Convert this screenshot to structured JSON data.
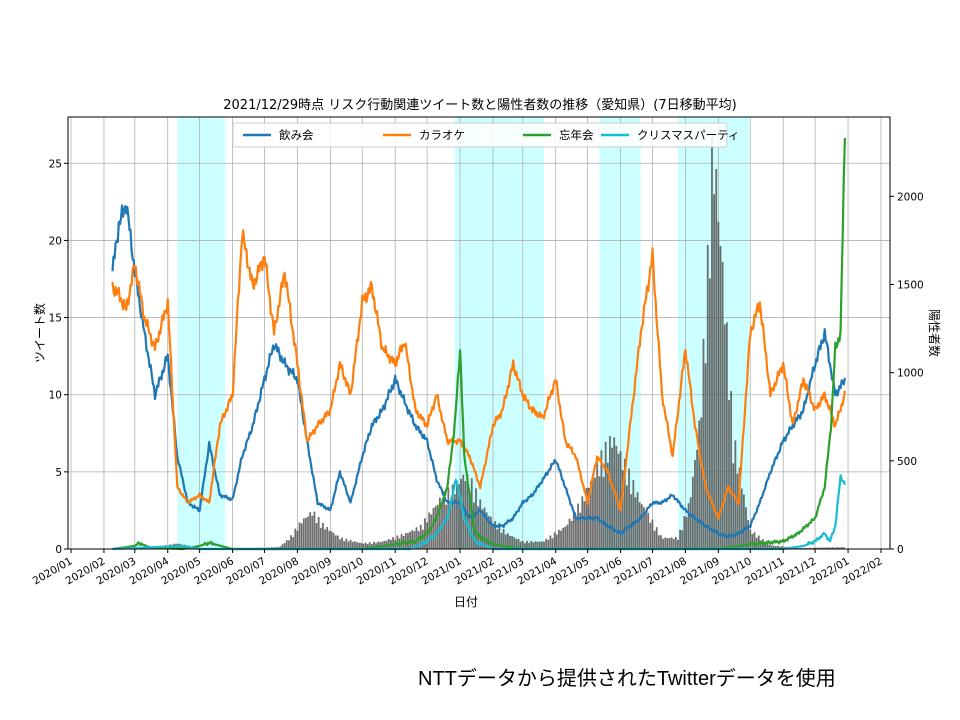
{
  "chart_data": {
    "type": "line",
    "title": "2021/12/29時点 リスク行動関連ツイート数と陽性者数の推移（愛知県）(7日移動平均)",
    "xlabel": "日付",
    "ylabel": "ツイート数",
    "ylabel_right": "陽性者数",
    "x_ticks": [
      "2020/01",
      "2020/02",
      "2020/03",
      "2020/04",
      "2020/05",
      "2020/06",
      "2020/07",
      "2020/08",
      "2020/09",
      "2020/10",
      "2020/11",
      "2020/12",
      "2021/01",
      "2021/02",
      "2021/03",
      "2021/04",
      "2021/05",
      "2021/06",
      "2021/07",
      "2021/08",
      "2021/09",
      "2021/10",
      "2021/11",
      "2021/12",
      "2022/01",
      "2022/02"
    ],
    "ylim": [
      0,
      28
    ],
    "y_ticks": [
      0,
      5,
      10,
      15,
      20,
      25
    ],
    "ylim_right": [
      0,
      2450
    ],
    "y_ticks_right": [
      0,
      500,
      1000,
      1500,
      2000
    ],
    "grid": true,
    "legend": "top-center",
    "shaded_periods": [
      [
        "2020/04/10",
        "2020/05/25"
      ],
      [
        "2020/12/27",
        "2021/03/21"
      ],
      [
        "2021/05/12",
        "2021/06/20"
      ],
      [
        "2021/07/25",
        "2021/09/30"
      ]
    ],
    "series": [
      {
        "name": "飲み会",
        "color": "#1f77b4",
        "x": [
          "2020/02/09",
          "2020/02/15",
          "2020/02/22",
          "2020/03/01",
          "2020/03/10",
          "2020/03/20",
          "2020/04/01",
          "2020/04/10",
          "2020/04/20",
          "2020/05/01",
          "2020/05/10",
          "2020/05/20",
          "2020/06/01",
          "2020/06/10",
          "2020/06/20",
          "2020/07/01",
          "2020/07/10",
          "2020/07/20",
          "2020/08/01",
          "2020/08/10",
          "2020/08/20",
          "2020/09/01",
          "2020/09/10",
          "2020/09/20",
          "2020/10/01",
          "2020/10/10",
          "2020/10/20",
          "2020/11/01",
          "2020/11/10",
          "2020/11/20",
          "2020/12/01",
          "2020/12/10",
          "2020/12/20",
          "2021/01/01",
          "2021/01/10",
          "2021/01/20",
          "2021/02/01",
          "2021/02/10",
          "2021/02/20",
          "2021/03/01",
          "2021/03/10",
          "2021/03/20",
          "2021/04/01",
          "2021/04/10",
          "2021/04/20",
          "2021/05/01",
          "2021/05/10",
          "2021/05/20",
          "2021/06/01",
          "2021/06/10",
          "2021/06/20",
          "2021/07/01",
          "2021/07/10",
          "2021/07/20",
          "2021/08/01",
          "2021/08/10",
          "2021/08/20",
          "2021/09/01",
          "2021/09/10",
          "2021/09/20",
          "2021/10/01",
          "2021/10/10",
          "2021/10/20",
          "2021/11/01",
          "2021/11/10",
          "2021/11/20",
          "2021/12/01",
          "2021/12/10",
          "2021/12/20",
          "2021/12/29"
        ],
        "values": [
          18,
          21,
          22.4,
          18,
          14,
          10,
          12.5,
          6,
          3,
          2.5,
          6.8,
          3.5,
          3.2,
          6,
          8,
          11,
          13.3,
          12,
          11,
          7,
          3,
          2.5,
          5,
          3,
          6,
          8,
          9,
          11,
          9.5,
          8,
          7,
          4.5,
          3,
          3,
          2,
          2.5,
          1.5,
          1.5,
          2,
          3,
          3.5,
          4.5,
          5.8,
          4,
          2,
          2,
          2,
          1.5,
          1,
          1.5,
          2,
          3,
          3,
          3.5,
          2.5,
          2,
          1.5,
          1,
          0.8,
          1,
          1.5,
          3,
          5,
          7,
          8,
          9,
          12,
          14,
          10,
          11
        ]
      },
      {
        "name": "カラオケ",
        "color": "#ff7f0e",
        "x": [
          "2020/02/09",
          "2020/02/15",
          "2020/02/22",
          "2020/03/01",
          "2020/03/10",
          "2020/03/20",
          "2020/04/01",
          "2020/04/10",
          "2020/04/20",
          "2020/05/01",
          "2020/05/10",
          "2020/05/20",
          "2020/06/01",
          "2020/06/10",
          "2020/06/20",
          "2020/07/01",
          "2020/07/10",
          "2020/07/20",
          "2020/08/01",
          "2020/08/10",
          "2020/08/20",
          "2020/09/01",
          "2020/09/10",
          "2020/09/20",
          "2020/10/01",
          "2020/10/10",
          "2020/10/20",
          "2020/11/01",
          "2020/11/10",
          "2020/11/20",
          "2020/12/01",
          "2020/12/10",
          "2020/12/20",
          "2021/01/01",
          "2021/01/10",
          "2021/01/20",
          "2021/02/01",
          "2021/02/10",
          "2021/02/20",
          "2021/03/01",
          "2021/03/10",
          "2021/03/20",
          "2021/04/01",
          "2021/04/10",
          "2021/04/20",
          "2021/05/01",
          "2021/05/10",
          "2021/05/20",
          "2021/06/01",
          "2021/06/10",
          "2021/06/20",
          "2021/07/01",
          "2021/07/10",
          "2021/07/20",
          "2021/08/01",
          "2021/08/10",
          "2021/08/20",
          "2021/09/01",
          "2021/09/10",
          "2021/09/20",
          "2021/10/01",
          "2021/10/10",
          "2021/10/20",
          "2021/11/01",
          "2021/11/10",
          "2021/11/20",
          "2021/12/01",
          "2021/12/10",
          "2021/12/20",
          "2021/12/29"
        ],
        "values": [
          17,
          16.5,
          15.5,
          18.5,
          15,
          13,
          16,
          4,
          3,
          3.5,
          3,
          8,
          10,
          20.5,
          17,
          19,
          14,
          18,
          12,
          7,
          8,
          9,
          12,
          10,
          16,
          17,
          13,
          12,
          13.5,
          9,
          8,
          10,
          7,
          7,
          6,
          4,
          8,
          9,
          12,
          10,
          9,
          8.5,
          11,
          7,
          6,
          3,
          6,
          5,
          2.5,
          8,
          14,
          19,
          10,
          6,
          13,
          8,
          4,
          2,
          4,
          3,
          14,
          16,
          10,
          12,
          8,
          11,
          9,
          10,
          8,
          10
        ]
      },
      {
        "name": "忘年会",
        "color": "#2ca02c",
        "x": [
          "2020/02/09",
          "2020/02/20",
          "2020/03/01",
          "2020/03/05",
          "2020/03/15",
          "2020/04/15",
          "2020/05/01",
          "2020/05/10",
          "2020/06/01",
          "2020/08/01",
          "2020/10/01",
          "2020/11/01",
          "2020/11/20",
          "2020/12/01",
          "2020/12/10",
          "2020/12/20",
          "2020/12/27",
          "2021/01/01",
          "2021/01/05",
          "2021/01/15",
          "2021/02/01",
          "2021/03/01",
          "2021/06/01",
          "2021/09/01",
          "2021/10/01",
          "2021/11/01",
          "2021/11/15",
          "2021/12/01",
          "2021/12/10",
          "2021/12/16",
          "2021/12/20",
          "2021/12/25",
          "2021/12/29"
        ],
        "values": [
          0,
          0.1,
          0.2,
          0.4,
          0.1,
          0,
          0.2,
          0.4,
          0,
          0,
          0,
          0.3,
          0.5,
          1,
          2,
          4,
          8,
          13,
          6,
          1,
          0.3,
          0,
          0,
          0,
          0.3,
          0.5,
          1,
          2,
          4,
          8,
          13,
          14,
          27
        ]
      },
      {
        "name": "クリスマスパーティ",
        "color": "#17becf",
        "x": [
          "2020/02/09",
          "2020/04/15",
          "2020/05/01",
          "2020/06/01",
          "2020/11/15",
          "2020/12/01",
          "2020/12/10",
          "2020/12/20",
          "2020/12/25",
          "2020/12/28",
          "2021/01/05",
          "2021/01/15",
          "2021/02/01",
          "2021/11/01",
          "2021/11/20",
          "2021/12/01",
          "2021/12/10",
          "2021/12/15",
          "2021/12/20",
          "2021/12/25",
          "2021/12/29"
        ],
        "values": [
          0,
          0.2,
          0,
          0,
          0,
          0.5,
          1,
          2,
          3.5,
          4.6,
          2,
          0.5,
          0,
          0,
          0.2,
          0.5,
          1,
          0.5,
          1.5,
          4.7,
          4.2
        ]
      },
      {
        "name": "陽性者数",
        "axis": "right",
        "type": "bar",
        "color": "#555555",
        "x": [
          "2020/02/09",
          "2020/03/15",
          "2020/04/10",
          "2020/05/01",
          "2020/06/01",
          "2020/07/15",
          "2020/07/25",
          "2020/08/05",
          "2020/08/15",
          "2020/08/25",
          "2020/09/10",
          "2020/10/01",
          "2020/10/20",
          "2020/11/10",
          "2020/11/25",
          "2020/12/05",
          "2020/12/15",
          "2020/12/25",
          "2021/01/05",
          "2021/01/12",
          "2021/01/20",
          "2021/02/01",
          "2021/02/15",
          "2021/03/01",
          "2021/03/20",
          "2021/04/10",
          "2021/04/25",
          "2021/05/05",
          "2021/05/15",
          "2021/05/25",
          "2021/06/05",
          "2021/06/20",
          "2021/07/10",
          "2021/07/25",
          "2021/08/05",
          "2021/08/15",
          "2021/08/22",
          "2021/08/27",
          "2021/09/05",
          "2021/09/15",
          "2021/10/01",
          "2021/10/20",
          "2021/11/15",
          "2021/12/29"
        ],
        "values": [
          0,
          5,
          30,
          5,
          0,
          10,
          60,
          150,
          200,
          130,
          60,
          30,
          40,
          80,
          120,
          200,
          280,
          320,
          400,
          350,
          250,
          150,
          80,
          40,
          40,
          120,
          250,
          380,
          500,
          600,
          450,
          250,
          60,
          60,
          250,
          700,
          1500,
          2200,
          1500,
          600,
          100,
          20,
          5,
          10
        ]
      }
    ]
  },
  "footer_note": "NTTデータから提供されたTwitterデータを使用"
}
